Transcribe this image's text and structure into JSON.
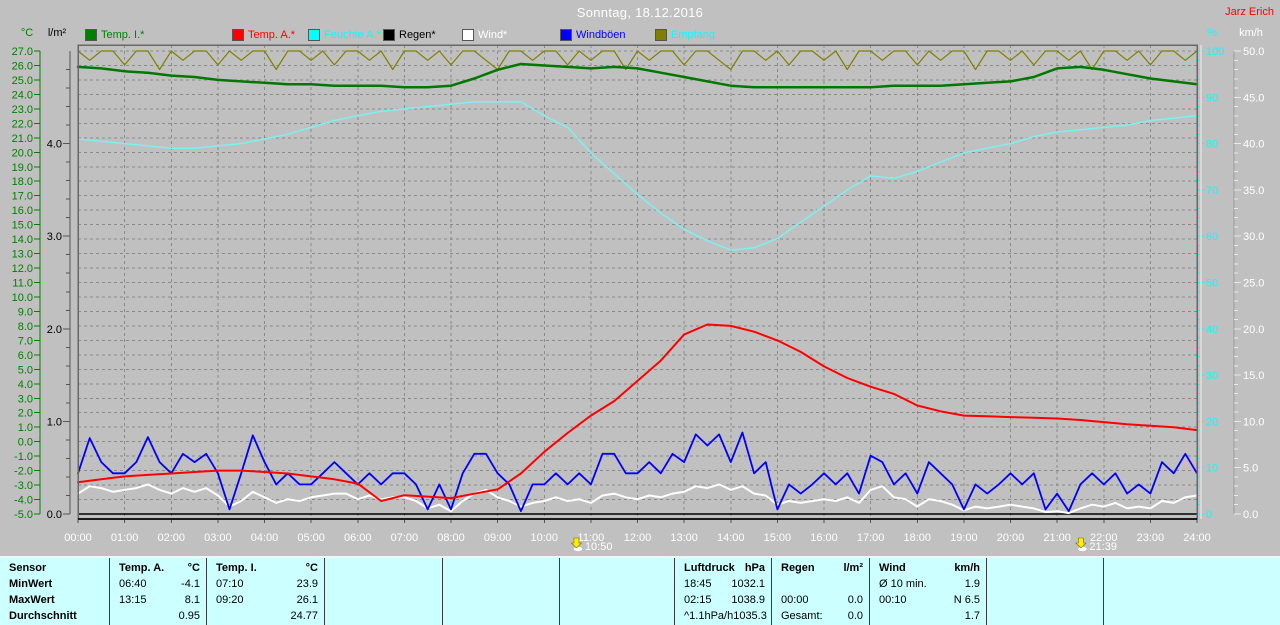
{
  "header": {
    "title": "Sonntag, 18.12.2016",
    "byline": "Jarz Erich"
  },
  "chart_data": {
    "type": "line",
    "title": "Sonntag, 18.12.2016",
    "grid": true,
    "x_axis": {
      "min": 0,
      "max": 24,
      "tick_labels": [
        "00:00",
        "01:00",
        "02:00",
        "03:00",
        "04:00",
        "05:00",
        "06:00",
        "07:00",
        "08:00",
        "09:00",
        "10:00",
        "11:00",
        "12:00",
        "13:00",
        "14:00",
        "15:00",
        "16:00",
        "17:00",
        "18:00",
        "19:00",
        "20:00",
        "21:00",
        "22:00",
        "23:00",
        "24:00"
      ]
    },
    "axes": {
      "temp": {
        "unit": "°C",
        "min": -5,
        "max": 27,
        "step": 1,
        "color": "#008000"
      },
      "rain": {
        "unit": "l/m²",
        "min": 0,
        "max": 5,
        "step": 1,
        "color": "#000000"
      },
      "humidity": {
        "unit": "%",
        "min": 0,
        "max": 100,
        "step": 10,
        "color": "#00ffff"
      },
      "wind": {
        "unit": "km/h",
        "min": 0,
        "max": 50,
        "step": 5,
        "color": "#ffffff"
      }
    },
    "series": [
      {
        "name": "Temp. I.*",
        "axis": "temp",
        "color": "#007800",
        "width": 2.5,
        "interval_h": 0.5,
        "values": [
          25.9,
          25.8,
          25.6,
          25.5,
          25.3,
          25.2,
          25.0,
          24.9,
          24.8,
          24.7,
          24.7,
          24.6,
          24.6,
          24.6,
          24.5,
          24.5,
          24.6,
          25.1,
          25.7,
          26.1,
          26.0,
          25.9,
          25.8,
          25.9,
          25.8,
          25.5,
          25.2,
          24.9,
          24.6,
          24.5,
          24.5,
          24.5,
          24.5,
          24.5,
          24.5,
          24.6,
          24.6,
          24.6,
          24.7,
          24.8,
          24.9,
          25.2,
          25.8,
          25.9,
          25.7,
          25.4,
          25.1,
          24.9,
          24.7
        ]
      },
      {
        "name": "Temp. A.*",
        "axis": "temp",
        "color": "#ff0000",
        "width": 2,
        "interval_h": 0.5,
        "values": [
          -2.8,
          -2.6,
          -2.4,
          -2.3,
          -2.2,
          -2.1,
          -2.0,
          -2.0,
          -2.1,
          -2.2,
          -2.4,
          -2.6,
          -2.9,
          -4.1,
          -3.7,
          -3.8,
          -3.9,
          -3.6,
          -3.3,
          -2.2,
          -0.7,
          0.6,
          1.8,
          2.8,
          4.2,
          5.6,
          7.4,
          8.1,
          8.0,
          7.6,
          7.0,
          6.2,
          5.2,
          4.4,
          3.8,
          3.3,
          2.5,
          2.1,
          1.8,
          1.75,
          1.7,
          1.65,
          1.6,
          1.5,
          1.35,
          1.2,
          1.1,
          1.0,
          0.8
        ]
      },
      {
        "name": "Feuchte A.*",
        "axis": "humidity",
        "color": "#7df0f0",
        "width": 1.5,
        "interval_h": 0.5,
        "values": [
          81,
          80.5,
          80,
          79.5,
          79,
          79,
          79.5,
          80,
          81,
          82,
          83.5,
          85,
          86,
          87,
          87.5,
          88,
          88.5,
          89,
          89,
          89,
          86,
          83.5,
          78,
          73.5,
          69,
          65,
          61.5,
          59,
          57,
          57.5,
          59.5,
          63,
          66.5,
          70,
          73,
          72.5,
          74,
          76,
          78,
          79,
          80,
          81.5,
          82.5,
          83,
          83.5,
          84,
          85,
          85.5,
          86
        ]
      },
      {
        "name": "Regen*",
        "axis": "rain",
        "color": "#000000",
        "width": 1.5,
        "constant": 0.0
      },
      {
        "name": "Wind*",
        "axis": "wind",
        "color": "#ffffff",
        "width": 2,
        "interval_h": 0.25,
        "values": [
          2.2,
          3.0,
          2.8,
          2.4,
          2.6,
          2.8,
          3.2,
          2.6,
          2.2,
          2.8,
          2.4,
          2.8,
          2.0,
          0.8,
          1.4,
          2.4,
          1.8,
          1.2,
          1.6,
          1.4,
          1.8,
          2.0,
          2.2,
          2.2,
          1.6,
          2.0,
          1.6,
          1.8,
          1.8,
          1.4,
          0.6,
          1.0,
          0.3,
          1.4,
          2.2,
          2.6,
          1.8,
          1.4,
          0.8,
          1.2,
          1.4,
          1.8,
          1.4,
          1.6,
          1.2,
          2.0,
          2.2,
          1.8,
          1.6,
          2.0,
          1.8,
          2.2,
          2.4,
          3.0,
          2.8,
          3.2,
          2.6,
          3.0,
          2.2,
          2.0,
          1.0,
          1.4,
          1.2,
          1.4,
          1.6,
          1.4,
          1.8,
          1.2,
          2.6,
          3.0,
          1.8,
          1.6,
          0.8,
          1.6,
          1.4,
          1.0,
          0.4,
          0.8,
          0.6,
          0.8,
          1.0,
          0.8,
          0.6,
          0.2,
          0.3,
          0.1,
          0.6,
          1.0,
          0.8,
          1.2,
          0.6,
          0.8,
          0.6,
          1.4,
          1.2,
          1.8,
          2.0
        ]
      },
      {
        "name": "Windböen",
        "axis": "wind",
        "color": "#0000ff",
        "width": 1.8,
        "interval_h": 0.25,
        "values": [
          4.4,
          8.2,
          5.6,
          4.4,
          4.4,
          5.6,
          8.3,
          5.6,
          4.4,
          6.5,
          5.6,
          6.5,
          4.4,
          0.5,
          4.4,
          8.5,
          5.6,
          3.2,
          4.4,
          3.2,
          3.2,
          4.4,
          5.6,
          4.4,
          3.2,
          4.4,
          3.2,
          4.4,
          4.4,
          3.2,
          0.5,
          3.2,
          0.5,
          4.4,
          6.5,
          6.5,
          4.4,
          3.2,
          0.3,
          3.2,
          3.2,
          4.4,
          3.2,
          4.4,
          3.2,
          6.5,
          6.5,
          4.4,
          4.4,
          5.6,
          4.4,
          6.5,
          5.6,
          8.6,
          7.4,
          8.6,
          5.6,
          8.8,
          4.4,
          5.6,
          0.5,
          3.2,
          2.2,
          3.2,
          4.4,
          3.2,
          4.4,
          2.2,
          6.3,
          5.6,
          3.2,
          4.4,
          2.2,
          5.6,
          4.4,
          3.2,
          0.5,
          3.2,
          2.2,
          3.2,
          4.4,
          3.2,
          4.4,
          0.5,
          2.2,
          0.3,
          3.2,
          4.4,
          3.2,
          4.4,
          2.2,
          3.2,
          2.2,
          5.6,
          4.4,
          6.5,
          4.4
        ]
      },
      {
        "name": "Empfang",
        "axis": "humidity",
        "color": "#808000",
        "width": 1.2,
        "interval_h": 0.25,
        "values": [
          100,
          98,
          100,
          100,
          97,
          100,
          100,
          96,
          100,
          98,
          100,
          100,
          97,
          100,
          98,
          100,
          100,
          96,
          100,
          100,
          98,
          100,
          97,
          100,
          100,
          98,
          100,
          96,
          100,
          100,
          98,
          100,
          97,
          100,
          100,
          98,
          96,
          100,
          100,
          98,
          100,
          100,
          97,
          100,
          98,
          100,
          100,
          96,
          100,
          98,
          100,
          100,
          97,
          100,
          100,
          98,
          96,
          100,
          100,
          98,
          100,
          97,
          100,
          100,
          98,
          100,
          96,
          100,
          100,
          98,
          100,
          100,
          97,
          100,
          98,
          100,
          100,
          96,
          100,
          100,
          98,
          100,
          97,
          100,
          100,
          98,
          100,
          96,
          100,
          100,
          98,
          100,
          97,
          100,
          100,
          98,
          100
        ]
      }
    ],
    "legend": [
      {
        "label": "Temp. I.*",
        "swatch": "#008000",
        "text_color": "#008000"
      },
      {
        "label": "Temp. A.*",
        "swatch": "#ff0000",
        "text_color": "#ff0000"
      },
      {
        "label": "Feuchte A.*",
        "swatch": "#00ffff",
        "text_color": "#00ffff"
      },
      {
        "label": "Regen*",
        "swatch": "#000000",
        "text_color": "#000000"
      },
      {
        "label": "Wind*",
        "swatch": "#ffffff",
        "text_color": "#ffffff"
      },
      {
        "label": "Windböen",
        "swatch": "#0000ff",
        "text_color": "#0000ff"
      },
      {
        "label": "Empfang",
        "swatch": "#808000",
        "text_color": "#00ffff"
      }
    ],
    "markers": [
      {
        "label": "10:50",
        "hour": 10.83
      },
      {
        "label": "21:39",
        "hour": 21.65
      }
    ]
  },
  "table": {
    "row_labels": [
      "Sensor",
      "MinWert",
      "MaxWert",
      "Durchschnitt"
    ],
    "columns": [
      {
        "name": "Temp. A.",
        "unit": "°C",
        "rows": [
          [
            "06:40",
            "-4.1"
          ],
          [
            "13:15",
            "8.1"
          ],
          [
            "",
            "0.95"
          ]
        ]
      },
      {
        "name": "Temp. I.",
        "unit": "°C",
        "rows": [
          [
            "07:10",
            "23.9"
          ],
          [
            "09:20",
            "26.1"
          ],
          [
            "",
            "24.77"
          ]
        ]
      },
      {
        "name": "",
        "unit": "",
        "rows": [
          [
            "",
            ""
          ],
          [
            "",
            ""
          ],
          [
            "",
            ""
          ]
        ]
      },
      {
        "name": "",
        "unit": "",
        "rows": [
          [
            "",
            ""
          ],
          [
            "",
            ""
          ],
          [
            "",
            ""
          ]
        ]
      },
      {
        "name": "",
        "unit": "",
        "rows": [
          [
            "",
            ""
          ],
          [
            "",
            ""
          ],
          [
            "",
            ""
          ]
        ]
      },
      {
        "name": "Luftdruck",
        "unit": "hPa",
        "rows": [
          [
            "18:45",
            "1032.1"
          ],
          [
            "02:15",
            "1038.9"
          ],
          [
            "^1.1hPa/h",
            "1035.3"
          ]
        ]
      },
      {
        "name": "Regen",
        "unit": "l/m²",
        "rows": [
          [
            "",
            ""
          ],
          [
            "00:00",
            "0.0"
          ],
          [
            "Gesamt:",
            "0.0"
          ]
        ]
      },
      {
        "name": "Wind",
        "unit": "km/h",
        "rows": [
          [
            "Ø 10 min.",
            "1.9"
          ],
          [
            "00:10",
            "N 6.5"
          ],
          [
            "",
            "1.7"
          ]
        ]
      },
      {
        "name": "",
        "unit": "",
        "rows": [
          [
            "",
            ""
          ],
          [
            "",
            ""
          ],
          [
            "",
            ""
          ]
        ]
      },
      {
        "name": "",
        "unit": "",
        "rows": [
          [
            "",
            ""
          ],
          [
            "",
            ""
          ],
          [
            "",
            ""
          ]
        ]
      }
    ]
  },
  "colors": {
    "background": "#c0c0c0",
    "plot_background": "#c0c0c0",
    "grid": "#8a8a8a",
    "plot_border": "#686868",
    "table_background": "#ccffff",
    "title": "#ffffff",
    "byline": "#ff0000",
    "x_labels": "#ffffff",
    "marker_icon": "#ffee00"
  }
}
